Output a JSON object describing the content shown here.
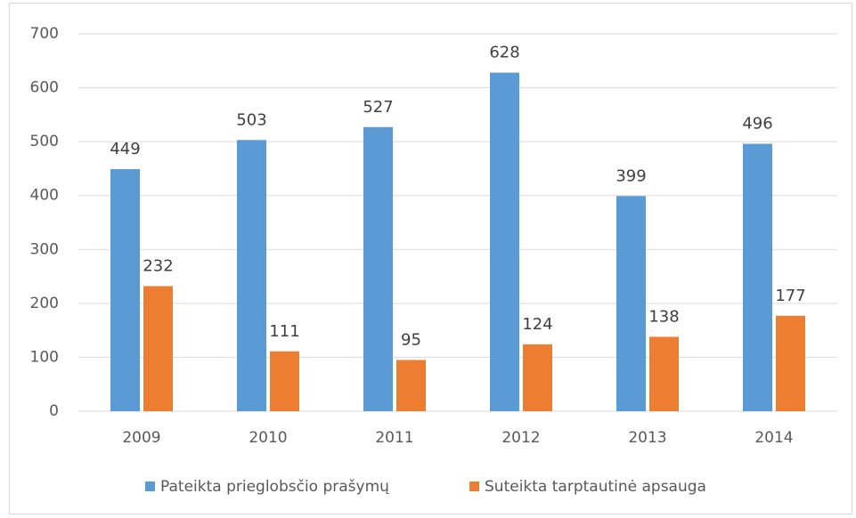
{
  "chart_data": {
    "type": "bar",
    "categories": [
      "2009",
      "2010",
      "2011",
      "2012",
      "2013",
      "2014"
    ],
    "series": [
      {
        "name": "Pateikta prieglobsčio prašymų",
        "color": "#5b9bd5",
        "values": [
          449,
          503,
          527,
          628,
          399,
          496
        ]
      },
      {
        "name": "Suteikta tarptautinė apsauga",
        "color": "#ed7d31",
        "values": [
          232,
          111,
          95,
          124,
          138,
          177
        ]
      }
    ],
    "ylim": [
      0,
      700
    ],
    "yticks": [
      0,
      100,
      200,
      300,
      400,
      500,
      600,
      700
    ],
    "grid": true,
    "legend": "bottom"
  }
}
